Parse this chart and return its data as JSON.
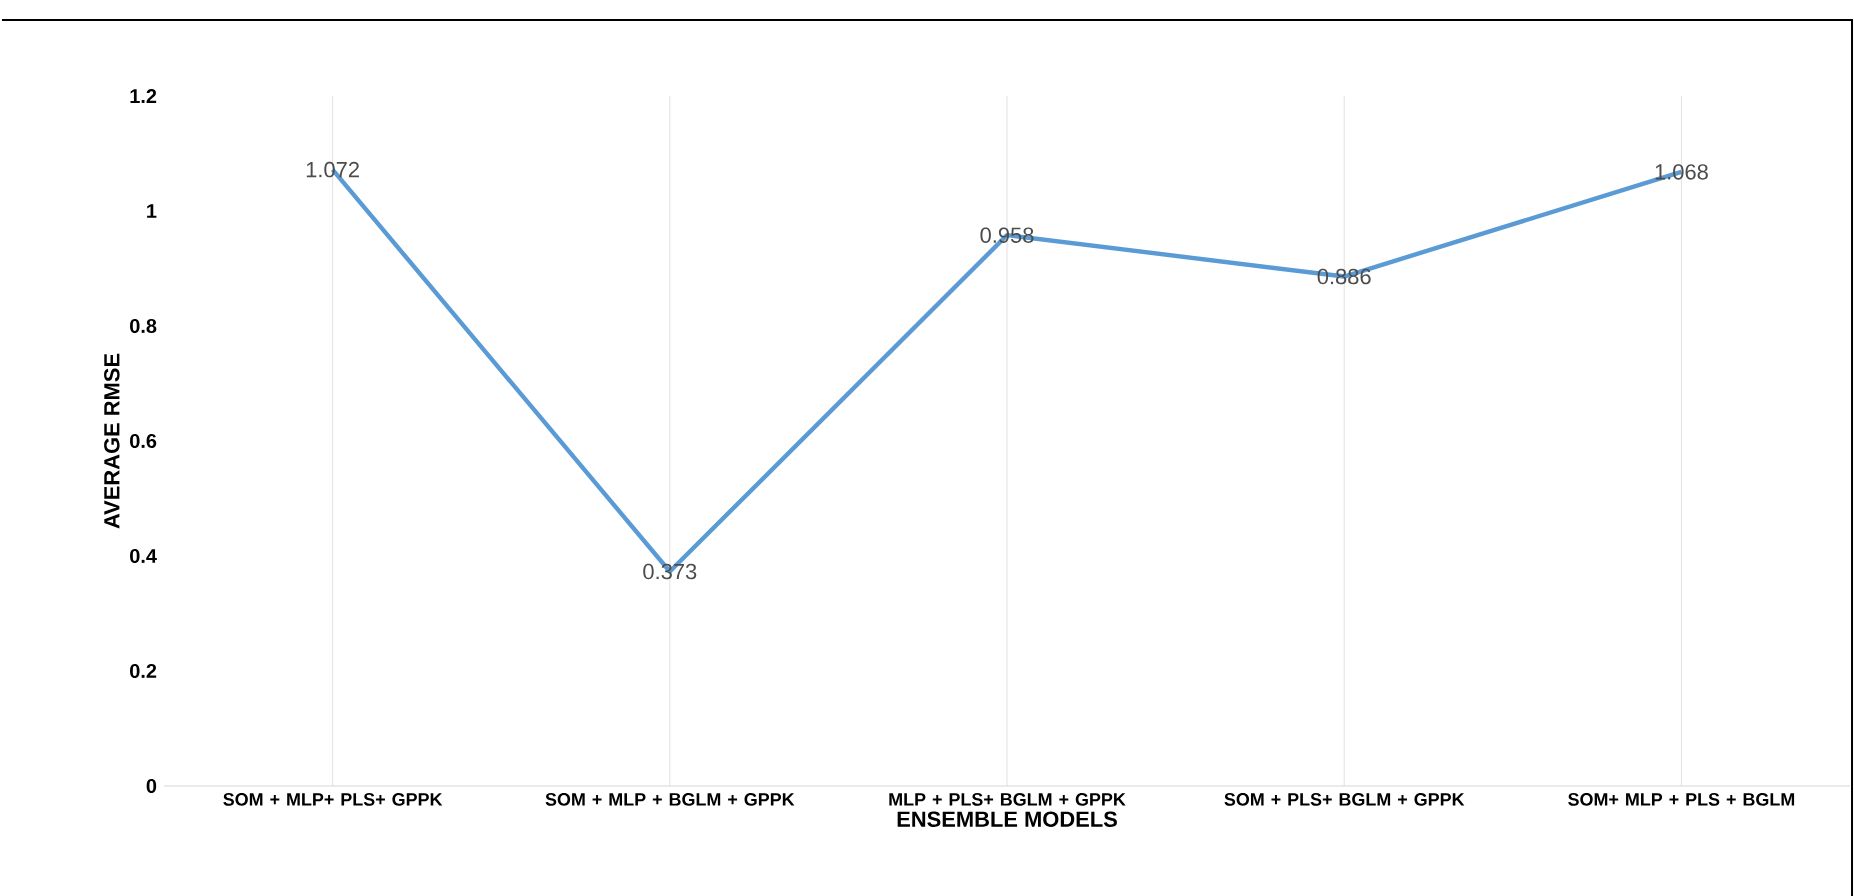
{
  "chart_data": {
    "type": "line",
    "xlabel": "ENSEMBLE MODELS",
    "ylabel": "AVERAGE RMSE",
    "categories": [
      "SOM + MLP+ PLS+ GPPK",
      "SOM + MLP + BGLM + GPPK",
      "MLP + PLS+ BGLM + GPPK",
      "SOM + PLS+ BGLM + GPPK",
      "SOM+ MLP + PLS + BGLM"
    ],
    "series": [
      {
        "color": "#5b9bd5",
        "values": [
          1.072,
          0.373,
          0.958,
          0.886,
          1.068
        ]
      }
    ],
    "ylim": [
      0,
      1.2
    ],
    "yticks": [
      0,
      0.2,
      0.4,
      0.6,
      0.8,
      1,
      1.2
    ],
    "grid": "x",
    "data_labels": true,
    "marker": "none",
    "line_style": "solid"
  }
}
